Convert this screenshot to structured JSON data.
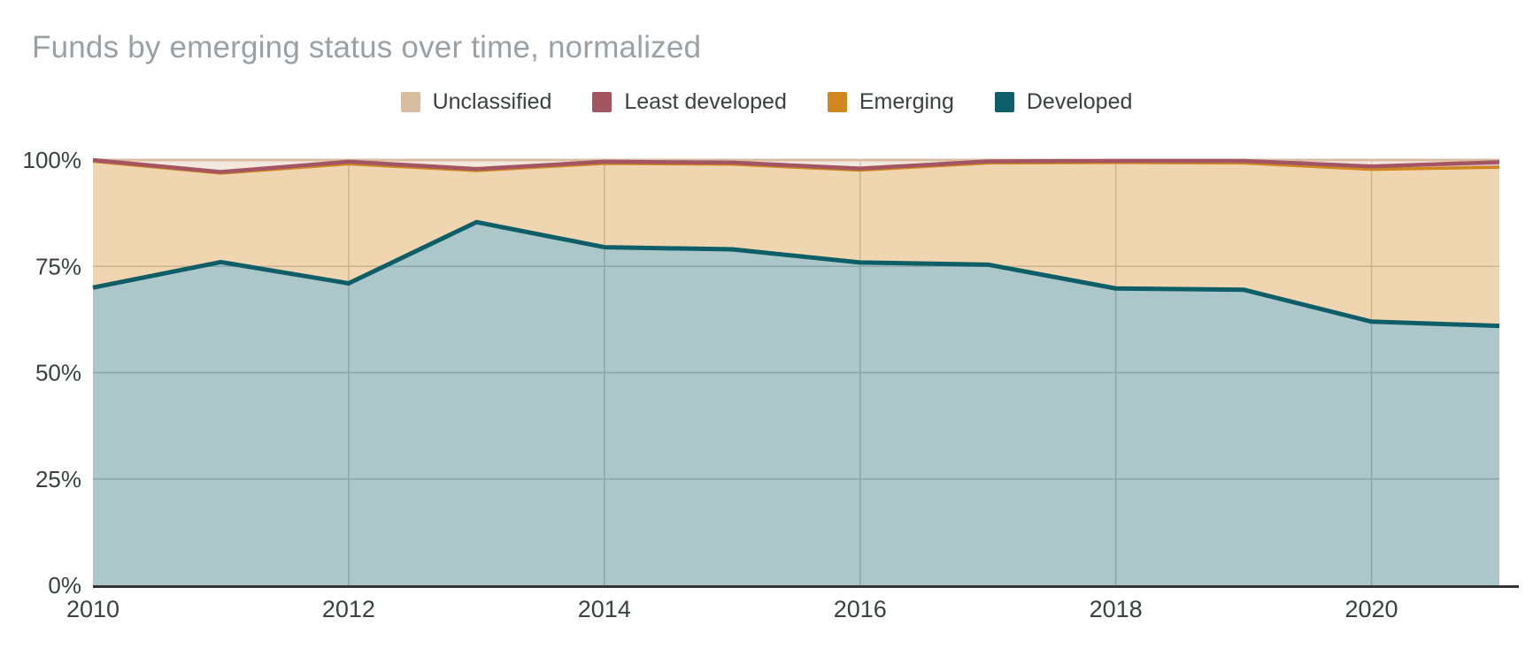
{
  "chart_data": {
    "type": "area",
    "stacked": "percent",
    "title": "Funds by emerging status over time, normalized",
    "x": [
      2010,
      2011,
      2012,
      2013,
      2014,
      2015,
      2016,
      2017,
      2018,
      2019,
      2020,
      2021
    ],
    "x_tick_years": [
      2010,
      2012,
      2014,
      2016,
      2018,
      2020
    ],
    "x_tick_labels": [
      "2010",
      "2012",
      "2014",
      "2016",
      "2018",
      "2020"
    ],
    "y_ticks": [
      0,
      25,
      50,
      75,
      100
    ],
    "y_tick_labels": [
      "0%",
      "25%",
      "50%",
      "75%",
      "100%"
    ],
    "ylim": [
      0,
      100
    ],
    "grid": true,
    "legend_position": "top",
    "series": [
      {
        "name": "Unclassified",
        "color": "#d9bda1",
        "values": [
          0.0,
          2.8,
          0.4,
          2.1,
          0.4,
          0.6,
          2.0,
          0.3,
          0.2,
          0.2,
          1.5,
          0.5
        ]
      },
      {
        "name": "Least developed",
        "color": "#a45562",
        "values": [
          0.3,
          0.3,
          0.5,
          0.4,
          0.4,
          0.4,
          0.4,
          0.4,
          0.4,
          0.5,
          0.7,
          1.2
        ]
      },
      {
        "name": "Emerging",
        "color": "#d0881e",
        "values": [
          29.7,
          20.9,
          28.1,
          12.1,
          19.7,
          20.0,
          21.7,
          23.9,
          29.6,
          29.8,
          35.8,
          37.3
        ]
      },
      {
        "name": "Developed",
        "color": "#0e5e68",
        "values": [
          70.0,
          76.0,
          71.0,
          85.4,
          79.5,
          79.0,
          75.9,
          75.4,
          69.8,
          69.5,
          62.0,
          61.0
        ]
      }
    ],
    "stack_order_bottom_to_top": [
      "Developed",
      "Emerging",
      "Least developed",
      "Unclassified"
    ],
    "fill_opacity": 0.35
  },
  "colors": {
    "background": "#ffffff",
    "title": "#9aa1a6",
    "legend_text": "#3c4043",
    "axis_label": "#3c4043",
    "gridline": "#cccccc",
    "baseline": "#333333"
  }
}
